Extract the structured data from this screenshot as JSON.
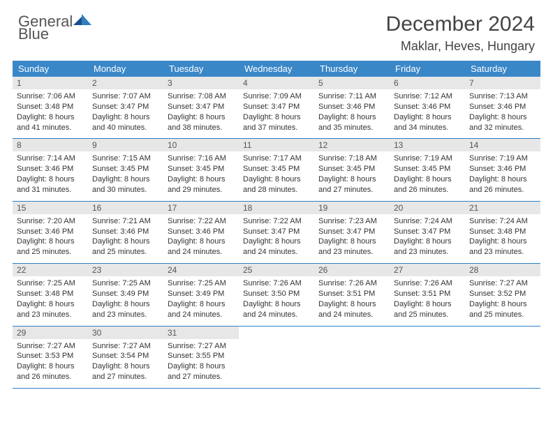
{
  "logo": {
    "textA": "General",
    "textB": "Blue"
  },
  "title": "December 2024",
  "location": "Maklar, Heves, Hungary",
  "header_bg": "#3a87c8",
  "day_headers": [
    "Sunday",
    "Monday",
    "Tuesday",
    "Wednesday",
    "Thursday",
    "Friday",
    "Saturday"
  ],
  "weeks": [
    [
      {
        "num": "1",
        "l1": "Sunrise: 7:06 AM",
        "l2": "Sunset: 3:48 PM",
        "l3": "Daylight: 8 hours",
        "l4": "and 41 minutes."
      },
      {
        "num": "2",
        "l1": "Sunrise: 7:07 AM",
        "l2": "Sunset: 3:47 PM",
        "l3": "Daylight: 8 hours",
        "l4": "and 40 minutes."
      },
      {
        "num": "3",
        "l1": "Sunrise: 7:08 AM",
        "l2": "Sunset: 3:47 PM",
        "l3": "Daylight: 8 hours",
        "l4": "and 38 minutes."
      },
      {
        "num": "4",
        "l1": "Sunrise: 7:09 AM",
        "l2": "Sunset: 3:47 PM",
        "l3": "Daylight: 8 hours",
        "l4": "and 37 minutes."
      },
      {
        "num": "5",
        "l1": "Sunrise: 7:11 AM",
        "l2": "Sunset: 3:46 PM",
        "l3": "Daylight: 8 hours",
        "l4": "and 35 minutes."
      },
      {
        "num": "6",
        "l1": "Sunrise: 7:12 AM",
        "l2": "Sunset: 3:46 PM",
        "l3": "Daylight: 8 hours",
        "l4": "and 34 minutes."
      },
      {
        "num": "7",
        "l1": "Sunrise: 7:13 AM",
        "l2": "Sunset: 3:46 PM",
        "l3": "Daylight: 8 hours",
        "l4": "and 32 minutes."
      }
    ],
    [
      {
        "num": "8",
        "l1": "Sunrise: 7:14 AM",
        "l2": "Sunset: 3:46 PM",
        "l3": "Daylight: 8 hours",
        "l4": "and 31 minutes."
      },
      {
        "num": "9",
        "l1": "Sunrise: 7:15 AM",
        "l2": "Sunset: 3:45 PM",
        "l3": "Daylight: 8 hours",
        "l4": "and 30 minutes."
      },
      {
        "num": "10",
        "l1": "Sunrise: 7:16 AM",
        "l2": "Sunset: 3:45 PM",
        "l3": "Daylight: 8 hours",
        "l4": "and 29 minutes."
      },
      {
        "num": "11",
        "l1": "Sunrise: 7:17 AM",
        "l2": "Sunset: 3:45 PM",
        "l3": "Daylight: 8 hours",
        "l4": "and 28 minutes."
      },
      {
        "num": "12",
        "l1": "Sunrise: 7:18 AM",
        "l2": "Sunset: 3:45 PM",
        "l3": "Daylight: 8 hours",
        "l4": "and 27 minutes."
      },
      {
        "num": "13",
        "l1": "Sunrise: 7:19 AM",
        "l2": "Sunset: 3:45 PM",
        "l3": "Daylight: 8 hours",
        "l4": "and 26 minutes."
      },
      {
        "num": "14",
        "l1": "Sunrise: 7:19 AM",
        "l2": "Sunset: 3:46 PM",
        "l3": "Daylight: 8 hours",
        "l4": "and 26 minutes."
      }
    ],
    [
      {
        "num": "15",
        "l1": "Sunrise: 7:20 AM",
        "l2": "Sunset: 3:46 PM",
        "l3": "Daylight: 8 hours",
        "l4": "and 25 minutes."
      },
      {
        "num": "16",
        "l1": "Sunrise: 7:21 AM",
        "l2": "Sunset: 3:46 PM",
        "l3": "Daylight: 8 hours",
        "l4": "and 25 minutes."
      },
      {
        "num": "17",
        "l1": "Sunrise: 7:22 AM",
        "l2": "Sunset: 3:46 PM",
        "l3": "Daylight: 8 hours",
        "l4": "and 24 minutes."
      },
      {
        "num": "18",
        "l1": "Sunrise: 7:22 AM",
        "l2": "Sunset: 3:47 PM",
        "l3": "Daylight: 8 hours",
        "l4": "and 24 minutes."
      },
      {
        "num": "19",
        "l1": "Sunrise: 7:23 AM",
        "l2": "Sunset: 3:47 PM",
        "l3": "Daylight: 8 hours",
        "l4": "and 23 minutes."
      },
      {
        "num": "20",
        "l1": "Sunrise: 7:24 AM",
        "l2": "Sunset: 3:47 PM",
        "l3": "Daylight: 8 hours",
        "l4": "and 23 minutes."
      },
      {
        "num": "21",
        "l1": "Sunrise: 7:24 AM",
        "l2": "Sunset: 3:48 PM",
        "l3": "Daylight: 8 hours",
        "l4": "and 23 minutes."
      }
    ],
    [
      {
        "num": "22",
        "l1": "Sunrise: 7:25 AM",
        "l2": "Sunset: 3:48 PM",
        "l3": "Daylight: 8 hours",
        "l4": "and 23 minutes."
      },
      {
        "num": "23",
        "l1": "Sunrise: 7:25 AM",
        "l2": "Sunset: 3:49 PM",
        "l3": "Daylight: 8 hours",
        "l4": "and 23 minutes."
      },
      {
        "num": "24",
        "l1": "Sunrise: 7:25 AM",
        "l2": "Sunset: 3:49 PM",
        "l3": "Daylight: 8 hours",
        "l4": "and 24 minutes."
      },
      {
        "num": "25",
        "l1": "Sunrise: 7:26 AM",
        "l2": "Sunset: 3:50 PM",
        "l3": "Daylight: 8 hours",
        "l4": "and 24 minutes."
      },
      {
        "num": "26",
        "l1": "Sunrise: 7:26 AM",
        "l2": "Sunset: 3:51 PM",
        "l3": "Daylight: 8 hours",
        "l4": "and 24 minutes."
      },
      {
        "num": "27",
        "l1": "Sunrise: 7:26 AM",
        "l2": "Sunset: 3:51 PM",
        "l3": "Daylight: 8 hours",
        "l4": "and 25 minutes."
      },
      {
        "num": "28",
        "l1": "Sunrise: 7:27 AM",
        "l2": "Sunset: 3:52 PM",
        "l3": "Daylight: 8 hours",
        "l4": "and 25 minutes."
      }
    ],
    [
      {
        "num": "29",
        "l1": "Sunrise: 7:27 AM",
        "l2": "Sunset: 3:53 PM",
        "l3": "Daylight: 8 hours",
        "l4": "and 26 minutes."
      },
      {
        "num": "30",
        "l1": "Sunrise: 7:27 AM",
        "l2": "Sunset: 3:54 PM",
        "l3": "Daylight: 8 hours",
        "l4": "and 27 minutes."
      },
      {
        "num": "31",
        "l1": "Sunrise: 7:27 AM",
        "l2": "Sunset: 3:55 PM",
        "l3": "Daylight: 8 hours",
        "l4": "and 27 minutes."
      },
      null,
      null,
      null,
      null
    ]
  ]
}
